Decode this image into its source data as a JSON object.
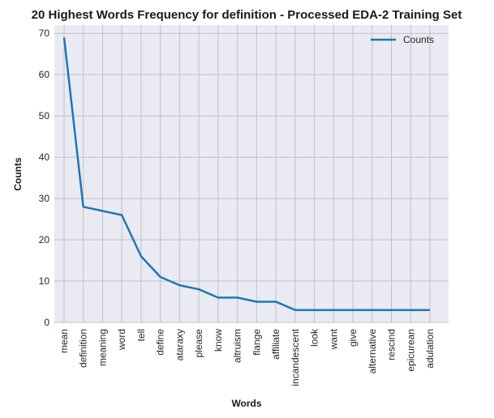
{
  "chart_data": {
    "type": "line",
    "title": "20 Highest Words Frequency for definition - Processed EDA-2 Training Set",
    "xlabel": "Words",
    "ylabel": "Counts",
    "categories": [
      "mean",
      "definition",
      "meaning",
      "word",
      "tell",
      "define",
      "ataraxy",
      "please",
      "know",
      "altruism",
      "flange",
      "affiliate",
      "incandescent",
      "look",
      "want",
      "give",
      "alternative",
      "rescind",
      "epicurean",
      "adulation"
    ],
    "series": [
      {
        "name": "Counts",
        "values": [
          69,
          28,
          27,
          26,
          16,
          11,
          9,
          8,
          6,
          6,
          5,
          5,
          3,
          3,
          3,
          3,
          3,
          3,
          3,
          3
        ]
      }
    ],
    "yticks": [
      0,
      10,
      20,
      30,
      40,
      50,
      60,
      70
    ],
    "ylim": [
      0,
      72
    ],
    "grid": true,
    "legend_position": "top-right",
    "colors": {
      "line": "#1f77b4",
      "plot_bg": "#eaeaf2",
      "grid": "#c0c0c8"
    }
  }
}
